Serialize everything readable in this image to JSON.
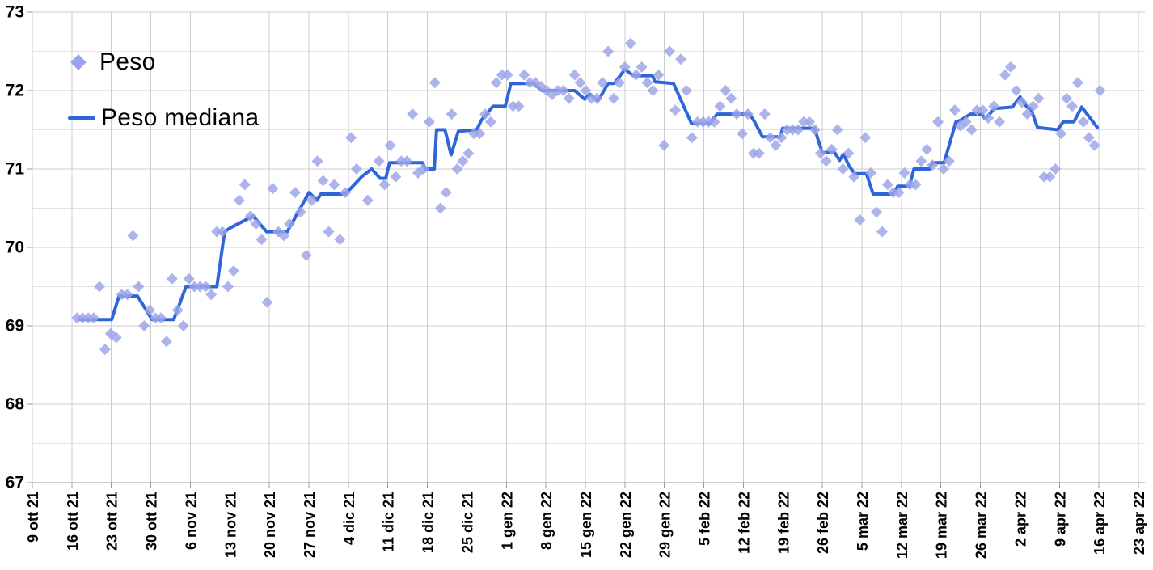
{
  "legend": {
    "peso_label": "Peso",
    "peso_mediana_label": "Peso mediana",
    "position": "top-left-inside"
  },
  "colors": {
    "scatter": "#9ba3e7",
    "median_line": "#2e66da",
    "grid_major": "#cccccc",
    "grid_minor": "#e2e2e2",
    "axis": "#999999",
    "axis_text": "#000000",
    "background": "#ffffff"
  },
  "chart_data": {
    "type": "scatter",
    "title": "",
    "xlabel": "",
    "ylabel": "",
    "ylim": [
      67,
      73
    ],
    "y_major_step": 1,
    "y_minor_step": 0.5,
    "grid": "major and minor horizontal lines, weekly vertical lines",
    "legend_position": "top-left inside plot",
    "x_unit": "days, origin = first x tick (9 ott 21), one tick per 7 days",
    "y_tick_labels": [
      "73",
      "72",
      "71",
      "70",
      "69",
      "68",
      "67"
    ],
    "x_tick_labels": [
      "9 ott 21",
      "16 ott 21",
      "23 ott 21",
      "30 ott 21",
      "6 nov 21",
      "13 nov 21",
      "20 nov 21",
      "27 nov 21",
      "4 dic 21",
      "11 dic 21",
      "18 dic 21",
      "25 dic 21",
      "1 gen 22",
      "8 gen 22",
      "15 gen 22",
      "22 gen 22",
      "29 gen 22",
      "5 feb 22",
      "12 feb 22",
      "19 feb 22",
      "26 feb 22",
      "5 mar 22",
      "12 mar 22",
      "19 mar 22",
      "26 mar 22",
      "2 apr 22",
      "9 apr 22",
      "16 apr 22",
      "23 apr 22"
    ],
    "series": [
      {
        "name": "Peso",
        "type": "scatter",
        "marker": "diamond",
        "color": "#9ba3e7",
        "points": [
          [
            8,
            69.1
          ],
          [
            9,
            69.1
          ],
          [
            10,
            69.1
          ],
          [
            11,
            69.1
          ],
          [
            12,
            69.5
          ],
          [
            13,
            68.7
          ],
          [
            14,
            68.9
          ],
          [
            15,
            68.85
          ],
          [
            16,
            69.4
          ],
          [
            17,
            69.4
          ],
          [
            18,
            70.15
          ],
          [
            19,
            69.5
          ],
          [
            20,
            69.0
          ],
          [
            21,
            69.2
          ],
          [
            22,
            69.1
          ],
          [
            23,
            69.1
          ],
          [
            24,
            68.8
          ],
          [
            25,
            69.6
          ],
          [
            26,
            69.2
          ],
          [
            27,
            69.0
          ],
          [
            28,
            69.6
          ],
          [
            29,
            69.5
          ],
          [
            30,
            69.5
          ],
          [
            31,
            69.5
          ],
          [
            32,
            69.4
          ],
          [
            33,
            70.2
          ],
          [
            34,
            70.2
          ],
          [
            35,
            69.5
          ],
          [
            36,
            69.7
          ],
          [
            37,
            70.6
          ],
          [
            38,
            70.8
          ],
          [
            39,
            70.4
          ],
          [
            40,
            70.3
          ],
          [
            41,
            70.1
          ],
          [
            42,
            69.3
          ],
          [
            43,
            70.75
          ],
          [
            44,
            70.2
          ],
          [
            45,
            70.15
          ],
          [
            46,
            70.3
          ],
          [
            47,
            70.7
          ],
          [
            48,
            70.45
          ],
          [
            49,
            69.9
          ],
          [
            50,
            70.6
          ],
          [
            51,
            71.1
          ],
          [
            52,
            70.85
          ],
          [
            53,
            70.2
          ],
          [
            54,
            70.8
          ],
          [
            55,
            70.1
          ],
          [
            56,
            70.7
          ],
          [
            57,
            71.4
          ],
          [
            58,
            71.0
          ],
          [
            60,
            70.6
          ],
          [
            62,
            71.1
          ],
          [
            63,
            70.8
          ],
          [
            64,
            71.3
          ],
          [
            65,
            70.9
          ],
          [
            66,
            71.1
          ],
          [
            67,
            71.1
          ],
          [
            68,
            71.7
          ],
          [
            69,
            70.95
          ],
          [
            70,
            71.0
          ],
          [
            71,
            71.6
          ],
          [
            72,
            72.1
          ],
          [
            73,
            70.5
          ],
          [
            74,
            70.7
          ],
          [
            75,
            71.7
          ],
          [
            76,
            71.0
          ],
          [
            77,
            71.1
          ],
          [
            78,
            71.2
          ],
          [
            79,
            71.45
          ],
          [
            80,
            71.45
          ],
          [
            81,
            71.7
          ],
          [
            82,
            71.6
          ],
          [
            83,
            72.1
          ],
          [
            84,
            72.2
          ],
          [
            85,
            72.2
          ],
          [
            86,
            71.8
          ],
          [
            87,
            71.8
          ],
          [
            88,
            72.2
          ],
          [
            89,
            72.1
          ],
          [
            90,
            72.1
          ],
          [
            91,
            72.05
          ],
          [
            92,
            72.0
          ],
          [
            93,
            71.95
          ],
          [
            94,
            72.0
          ],
          [
            95,
            72.0
          ],
          [
            96,
            71.9
          ],
          [
            97,
            72.2
          ],
          [
            98,
            72.1
          ],
          [
            99,
            72.0
          ],
          [
            100,
            71.9
          ],
          [
            101,
            71.9
          ],
          [
            102,
            72.1
          ],
          [
            103,
            72.5
          ],
          [
            104,
            71.9
          ],
          [
            105,
            72.1
          ],
          [
            106,
            72.3
          ],
          [
            107,
            72.6
          ],
          [
            108,
            72.2
          ],
          [
            109,
            72.3
          ],
          [
            110,
            72.1
          ],
          [
            111,
            72.0
          ],
          [
            112,
            72.2
          ],
          [
            113,
            71.3
          ],
          [
            114,
            72.5
          ],
          [
            115,
            71.75
          ],
          [
            116,
            72.4
          ],
          [
            117,
            72.0
          ],
          [
            118,
            71.4
          ],
          [
            119,
            71.6
          ],
          [
            120,
            71.6
          ],
          [
            121,
            71.6
          ],
          [
            122,
            71.6
          ],
          [
            123,
            71.8
          ],
          [
            124,
            72.0
          ],
          [
            125,
            71.9
          ],
          [
            126,
            71.7
          ],
          [
            127,
            71.45
          ],
          [
            128,
            71.7
          ],
          [
            129,
            71.2
          ],
          [
            130,
            71.2
          ],
          [
            131,
            71.7
          ],
          [
            132,
            71.4
          ],
          [
            133,
            71.3
          ],
          [
            134,
            71.4
          ],
          [
            135,
            71.5
          ],
          [
            136,
            71.5
          ],
          [
            137,
            71.5
          ],
          [
            138,
            71.6
          ],
          [
            139,
            71.6
          ],
          [
            140,
            71.5
          ],
          [
            141,
            71.2
          ],
          [
            142,
            71.1
          ],
          [
            143,
            71.25
          ],
          [
            144,
            71.5
          ],
          [
            145,
            71.0
          ],
          [
            146,
            71.2
          ],
          [
            147,
            70.9
          ],
          [
            148,
            70.35
          ],
          [
            149,
            71.4
          ],
          [
            150,
            70.95
          ],
          [
            151,
            70.45
          ],
          [
            152,
            70.2
          ],
          [
            153,
            70.8
          ],
          [
            154,
            70.7
          ],
          [
            155,
            70.7
          ],
          [
            156,
            70.95
          ],
          [
            157,
            70.8
          ],
          [
            158,
            70.8
          ],
          [
            159,
            71.1
          ],
          [
            160,
            71.25
          ],
          [
            161,
            71.05
          ],
          [
            162,
            71.6
          ],
          [
            163,
            71.0
          ],
          [
            164,
            71.1
          ],
          [
            165,
            71.75
          ],
          [
            166,
            71.55
          ],
          [
            167,
            71.6
          ],
          [
            168,
            71.5
          ],
          [
            169,
            71.75
          ],
          [
            170,
            71.75
          ],
          [
            171,
            71.65
          ],
          [
            172,
            71.8
          ],
          [
            173,
            71.6
          ],
          [
            174,
            72.2
          ],
          [
            175,
            72.3
          ],
          [
            176,
            72.0
          ],
          [
            177,
            71.85
          ],
          [
            178,
            71.7
          ],
          [
            179,
            71.8
          ],
          [
            180,
            71.9
          ],
          [
            181,
            70.9
          ],
          [
            182,
            70.9
          ],
          [
            183,
            71.0
          ],
          [
            184,
            71.45
          ],
          [
            185,
            71.9
          ],
          [
            186,
            71.8
          ],
          [
            187,
            72.1
          ],
          [
            188,
            71.6
          ],
          [
            189,
            71.4
          ],
          [
            190,
            71.3
          ],
          [
            191,
            72.0
          ]
        ]
      },
      {
        "name": "Peso mediana",
        "type": "line",
        "color": "#2e66da",
        "points": [
          [
            8.4,
            69.08
          ],
          [
            14.2,
            69.08
          ],
          [
            15.5,
            69.38
          ],
          [
            18.8,
            69.38
          ],
          [
            21.4,
            69.08
          ],
          [
            25.3,
            69.08
          ],
          [
            27.5,
            69.5
          ],
          [
            33.0,
            69.5
          ],
          [
            34.4,
            70.2
          ],
          [
            35.4,
            70.25
          ],
          [
            39.5,
            70.4
          ],
          [
            41.9,
            70.2
          ],
          [
            45.6,
            70.2
          ],
          [
            49.5,
            70.7
          ],
          [
            50.9,
            70.6
          ],
          [
            51.6,
            70.68
          ],
          [
            56.0,
            70.68
          ],
          [
            58.9,
            70.9
          ],
          [
            60.7,
            71.0
          ],
          [
            62.2,
            70.88
          ],
          [
            63.2,
            70.88
          ],
          [
            63.9,
            71.08
          ],
          [
            69.8,
            71.08
          ],
          [
            70.3,
            71.0
          ],
          [
            71.9,
            71.0
          ],
          [
            72.3,
            71.5
          ],
          [
            73.8,
            71.5
          ],
          [
            74.9,
            71.18
          ],
          [
            76.2,
            71.48
          ],
          [
            79.5,
            71.5
          ],
          [
            80.3,
            71.62
          ],
          [
            82.4,
            71.8
          ],
          [
            84.6,
            71.8
          ],
          [
            85.6,
            72.09
          ],
          [
            89.7,
            72.09
          ],
          [
            91.1,
            72.0
          ],
          [
            97.0,
            72.0
          ],
          [
            98.8,
            71.89
          ],
          [
            99.8,
            71.95
          ],
          [
            101.2,
            71.87
          ],
          [
            103.0,
            72.09
          ],
          [
            104.1,
            72.09
          ],
          [
            106.0,
            72.27
          ],
          [
            107.5,
            72.19
          ],
          [
            110.9,
            72.19
          ],
          [
            111.4,
            72.11
          ],
          [
            114.7,
            72.09
          ],
          [
            117.9,
            71.58
          ],
          [
            121.1,
            71.58
          ],
          [
            122.5,
            71.7
          ],
          [
            128.3,
            71.7
          ],
          [
            129.2,
            71.6
          ],
          [
            130.6,
            71.41
          ],
          [
            133.8,
            71.41
          ],
          [
            134.2,
            71.52
          ],
          [
            139.9,
            71.52
          ],
          [
            141.3,
            71.21
          ],
          [
            143.5,
            71.21
          ],
          [
            144.4,
            71.11
          ],
          [
            145.1,
            71.19
          ],
          [
            146.1,
            71.04
          ],
          [
            147.1,
            70.94
          ],
          [
            149.2,
            70.94
          ],
          [
            150.4,
            70.68
          ],
          [
            154.0,
            70.68
          ],
          [
            154.8,
            70.78
          ],
          [
            156.9,
            70.78
          ],
          [
            157.7,
            71.0
          ],
          [
            160.5,
            71.0
          ],
          [
            161.0,
            71.08
          ],
          [
            163.1,
            71.08
          ],
          [
            165.2,
            71.6
          ],
          [
            166.0,
            71.62
          ],
          [
            167.8,
            71.7
          ],
          [
            169.9,
            71.7
          ],
          [
            170.4,
            71.64
          ],
          [
            171.1,
            71.69
          ],
          [
            172.1,
            71.77
          ],
          [
            175.3,
            71.79
          ],
          [
            176.7,
            71.92
          ],
          [
            177.9,
            71.79
          ],
          [
            178.6,
            71.77
          ],
          [
            179.8,
            71.53
          ],
          [
            183.4,
            71.5
          ],
          [
            184.4,
            71.6
          ],
          [
            186.3,
            71.6
          ],
          [
            187.7,
            71.79
          ],
          [
            190.5,
            71.53
          ]
        ]
      }
    ]
  }
}
